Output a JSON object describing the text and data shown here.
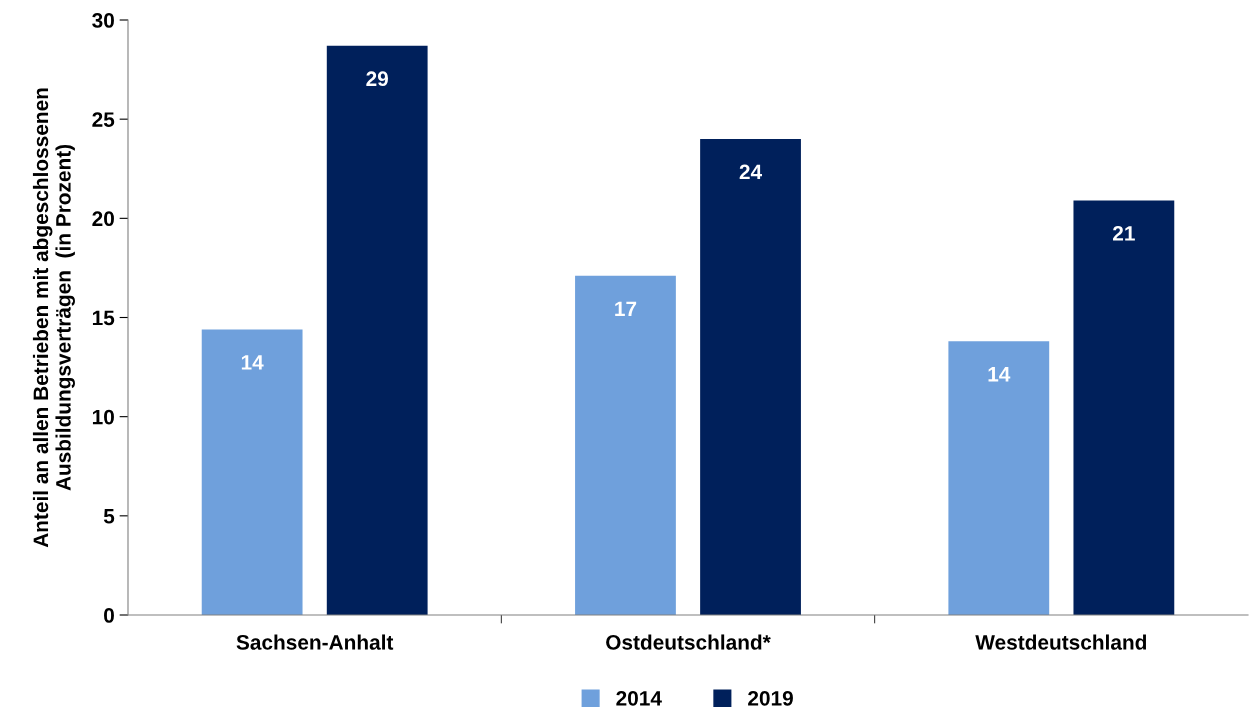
{
  "chart_data": {
    "type": "bar",
    "ylabel": "Anteil an allen Betrieben mit abgeschlossenen\nAusbildungsverträgen  (in Prozent)",
    "categories": [
      "Sachsen-Anhalt",
      "Ostdeutschland*",
      "Westdeutschland"
    ],
    "series": [
      {
        "name": "2014",
        "color": "#6fa0dc",
        "values": [
          14.4,
          17.1,
          13.8
        ],
        "value_labels": [
          "14",
          "17",
          "14"
        ]
      },
      {
        "name": "2019",
        "color": "#00205b",
        "values": [
          28.7,
          24.0,
          20.9
        ],
        "value_labels": [
          "29",
          "24",
          "21"
        ]
      }
    ],
    "ylim": [
      0,
      30
    ],
    "yticks": [
      0,
      5,
      10,
      15,
      20,
      25,
      30
    ],
    "grid": false,
    "legend": "bottom"
  }
}
